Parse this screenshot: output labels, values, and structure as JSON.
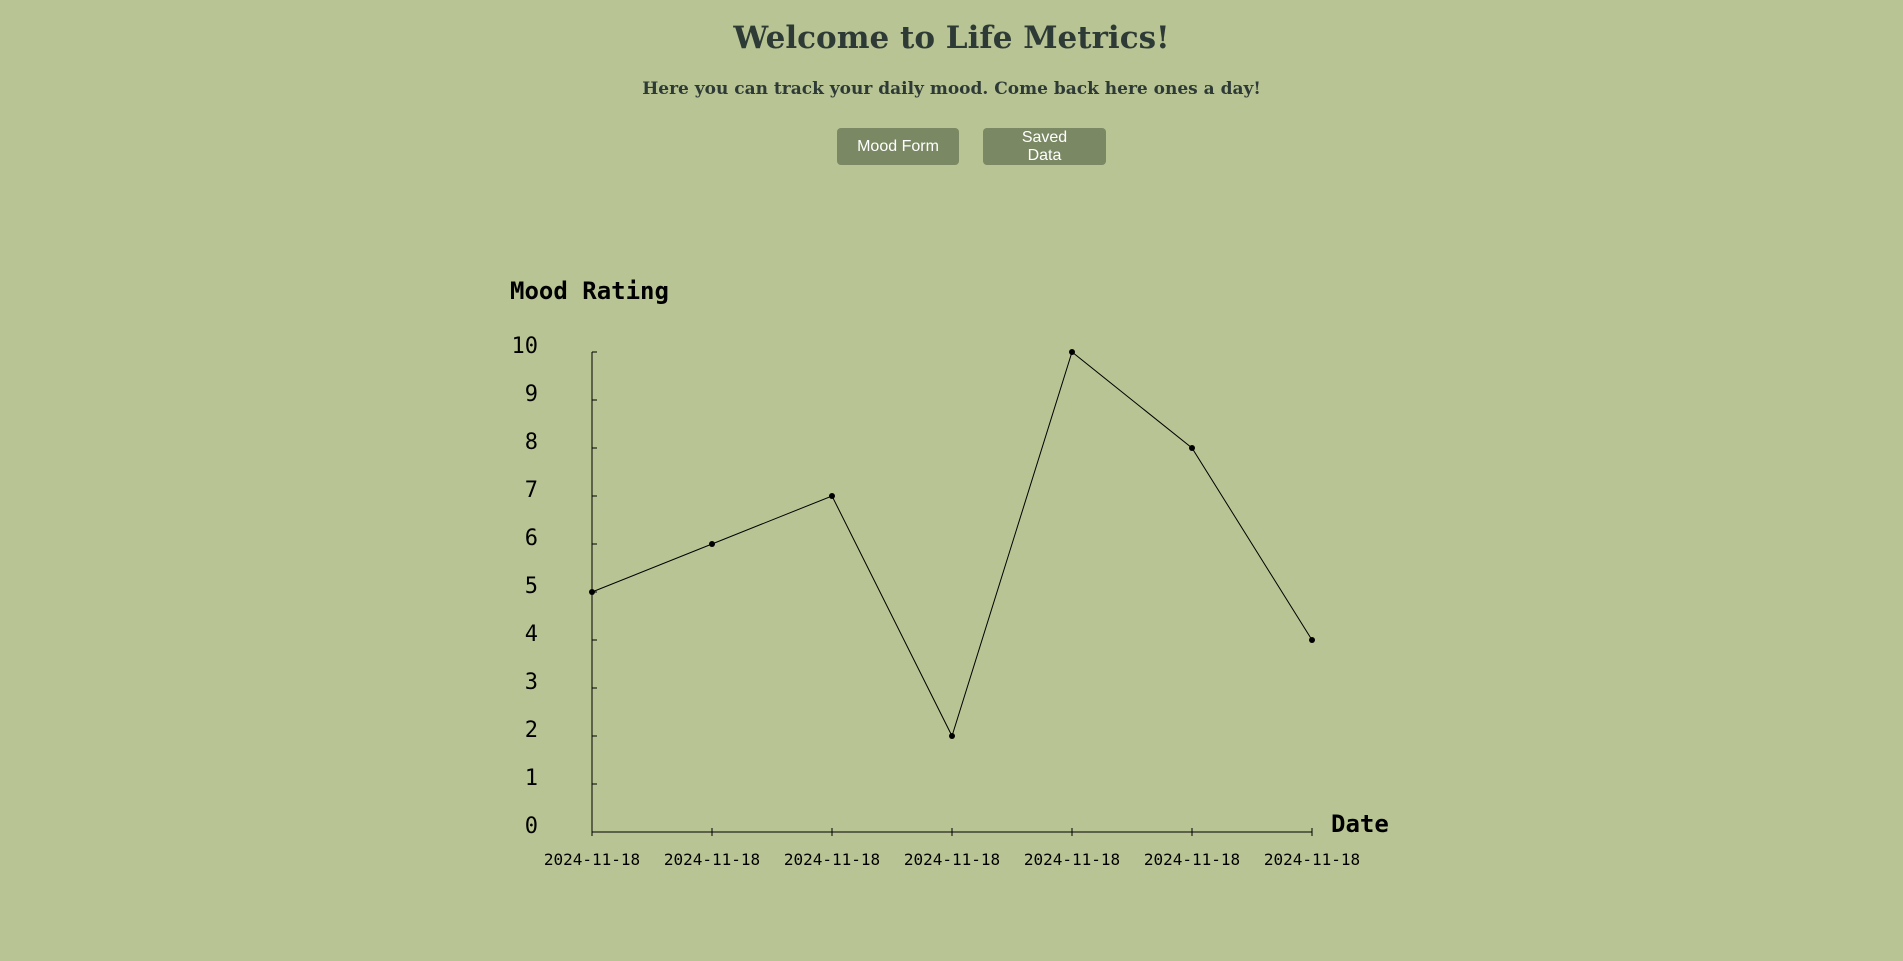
{
  "page": {
    "title": "Welcome to Life Metrics!",
    "subtitle": "Here you can track your daily mood. Come back here ones a day!",
    "background_color": "#b8c493",
    "text_color": "#2e3a36"
  },
  "nav": {
    "mood_form_label": "Mood Form",
    "saved_data_label": "Saved Data",
    "button_color": "#7a8864",
    "button_text_color": "#ffffff"
  },
  "chart_data": {
    "type": "line",
    "title": "",
    "ylabel": "Mood Rating",
    "xlabel": "Date",
    "x": [
      "2024-11-18",
      "2024-11-18",
      "2024-11-18",
      "2024-11-18",
      "2024-11-18",
      "2024-11-18",
      "2024-11-18"
    ],
    "values": [
      5,
      6,
      7,
      2,
      10,
      8,
      4
    ],
    "ylim": [
      0,
      10
    ],
    "yticks": [
      0,
      1,
      2,
      3,
      4,
      5,
      6,
      7,
      8,
      9,
      10
    ],
    "grid": false,
    "line_color": "#000000"
  }
}
